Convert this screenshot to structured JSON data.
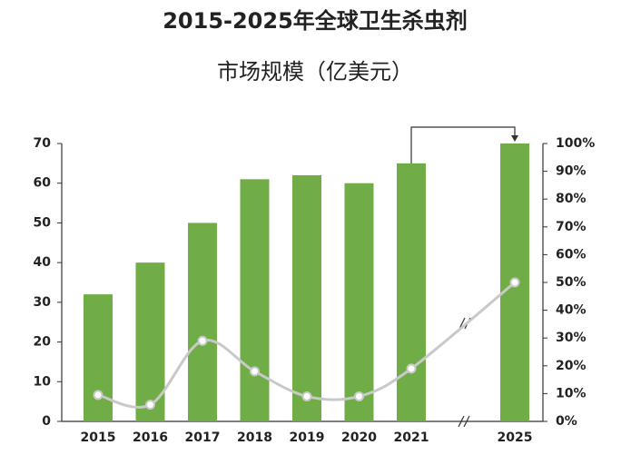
{
  "chart_data": {
    "type": "bar",
    "title_lines": [
      "2015-2025年全球卫生杀虫剂",
      "市场规模（亿美元）"
    ],
    "categories": [
      "2015",
      "2016",
      "2017",
      "2018",
      "2019",
      "2020",
      "2021",
      "2025"
    ],
    "series": [
      {
        "type": "bar",
        "color": "#70ad47",
        "values": [
          32,
          40,
          50,
          61,
          62,
          60,
          65,
          70
        ]
      },
      {
        "type": "line",
        "color": "#c9c9c9",
        "axis": "y2",
        "values": [
          9.5,
          6,
          29,
          18,
          9,
          9,
          19,
          50
        ]
      }
    ],
    "ylim": [
      0,
      70
    ],
    "yticks": [
      0,
      10,
      20,
      30,
      40,
      50,
      60,
      70
    ],
    "y2lim": [
      0,
      100
    ],
    "y2ticks": [
      {
        "value": 0,
        "label": "0%"
      },
      {
        "value": 10,
        "label": "10%"
      },
      {
        "value": 20,
        "label": "20%"
      },
      {
        "value": 30,
        "label": "30%"
      },
      {
        "value": 40,
        "label": "40%"
      },
      {
        "value": 50,
        "label": "50%"
      },
      {
        "value": 60,
        "label": "60%"
      },
      {
        "value": 70,
        "label": "70%"
      },
      {
        "value": 80,
        "label": "80%"
      },
      {
        "value": 90,
        "label": "90%"
      },
      {
        "value": 100,
        "label": "100%"
      }
    ],
    "grid": false
  }
}
